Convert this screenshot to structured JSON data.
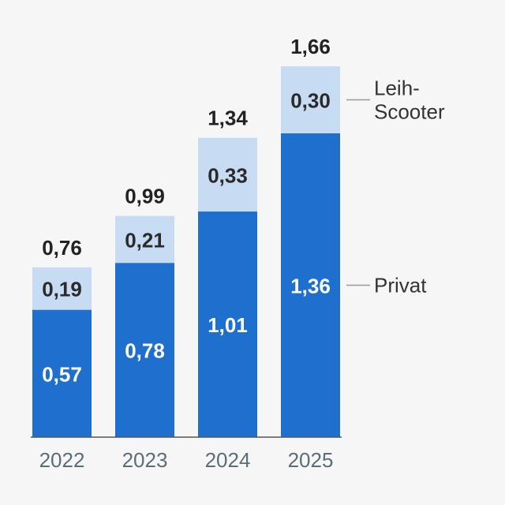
{
  "chart_data": {
    "type": "bar",
    "stacked": true,
    "categories": [
      "2022",
      "2023",
      "2024",
      "2025"
    ],
    "series": [
      {
        "name": "Privat",
        "values": [
          0.57,
          0.78,
          1.01,
          1.36
        ],
        "labels": [
          "0,57",
          "0,78",
          "1,01",
          "1,36"
        ],
        "color": "#1f6fcf",
        "label_color": "#ffffff"
      },
      {
        "name": "Leih-Scooter",
        "name_lines": [
          "Leih-",
          "Scooter"
        ],
        "values": [
          0.19,
          0.21,
          0.33,
          0.3
        ],
        "labels": [
          "0,19",
          "0,21",
          "0,33",
          "0,30"
        ],
        "color": "#c7dbf3",
        "label_color": "#2a2a2a"
      }
    ],
    "totals": [
      0.76,
      0.99,
      1.34,
      1.66
    ],
    "total_labels": [
      "0,76",
      "0,99",
      "1,34",
      "1,66"
    ],
    "ylim": [
      0,
      1.66
    ],
    "grid": false,
    "legend": "right, inline labels",
    "axis_color": "#555555",
    "title": "",
    "xlabel": "",
    "ylabel": ""
  }
}
